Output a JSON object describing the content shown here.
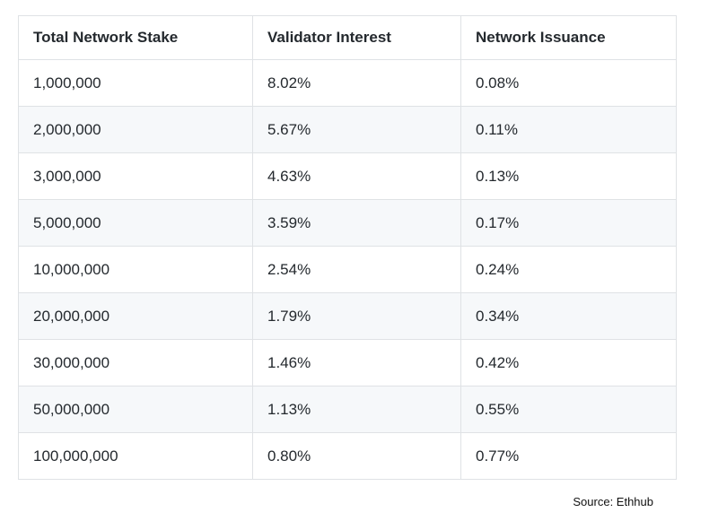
{
  "chart_data": {
    "type": "table",
    "title": "",
    "columns": [
      "Total Network Stake",
      "Validator Interest",
      "Network Issuance"
    ],
    "rows": [
      [
        "1,000,000",
        "8.02%",
        "0.08%"
      ],
      [
        "2,000,000",
        "5.67%",
        "0.11%"
      ],
      [
        "3,000,000",
        "4.63%",
        "0.13%"
      ],
      [
        "5,000,000",
        "3.59%",
        "0.17%"
      ],
      [
        "10,000,000",
        "2.54%",
        "0.24%"
      ],
      [
        "20,000,000",
        "1.79%",
        "0.34%"
      ],
      [
        "30,000,000",
        "1.46%",
        "0.42%"
      ],
      [
        "50,000,000",
        "1.13%",
        "0.55%"
      ],
      [
        "100,000,000",
        "0.80%",
        "0.77%"
      ]
    ],
    "series": [
      {
        "name": "Validator Interest",
        "x": [
          1000000,
          2000000,
          3000000,
          5000000,
          10000000,
          20000000,
          30000000,
          50000000,
          100000000
        ],
        "values": [
          8.02,
          5.67,
          4.63,
          3.59,
          2.54,
          1.79,
          1.46,
          1.13,
          0.8
        ]
      },
      {
        "name": "Network Issuance",
        "x": [
          1000000,
          2000000,
          3000000,
          5000000,
          10000000,
          20000000,
          30000000,
          50000000,
          100000000
        ],
        "values": [
          0.08,
          0.11,
          0.13,
          0.17,
          0.24,
          0.34,
          0.42,
          0.55,
          0.77
        ]
      }
    ],
    "layout_hints": {
      "striped_rows": "even data rows shaded",
      "stripe_color": "#f6f8fa",
      "border_color": "#dfe2e5",
      "text_color": "#24292e"
    }
  },
  "source_note": "Source: Ethhub"
}
